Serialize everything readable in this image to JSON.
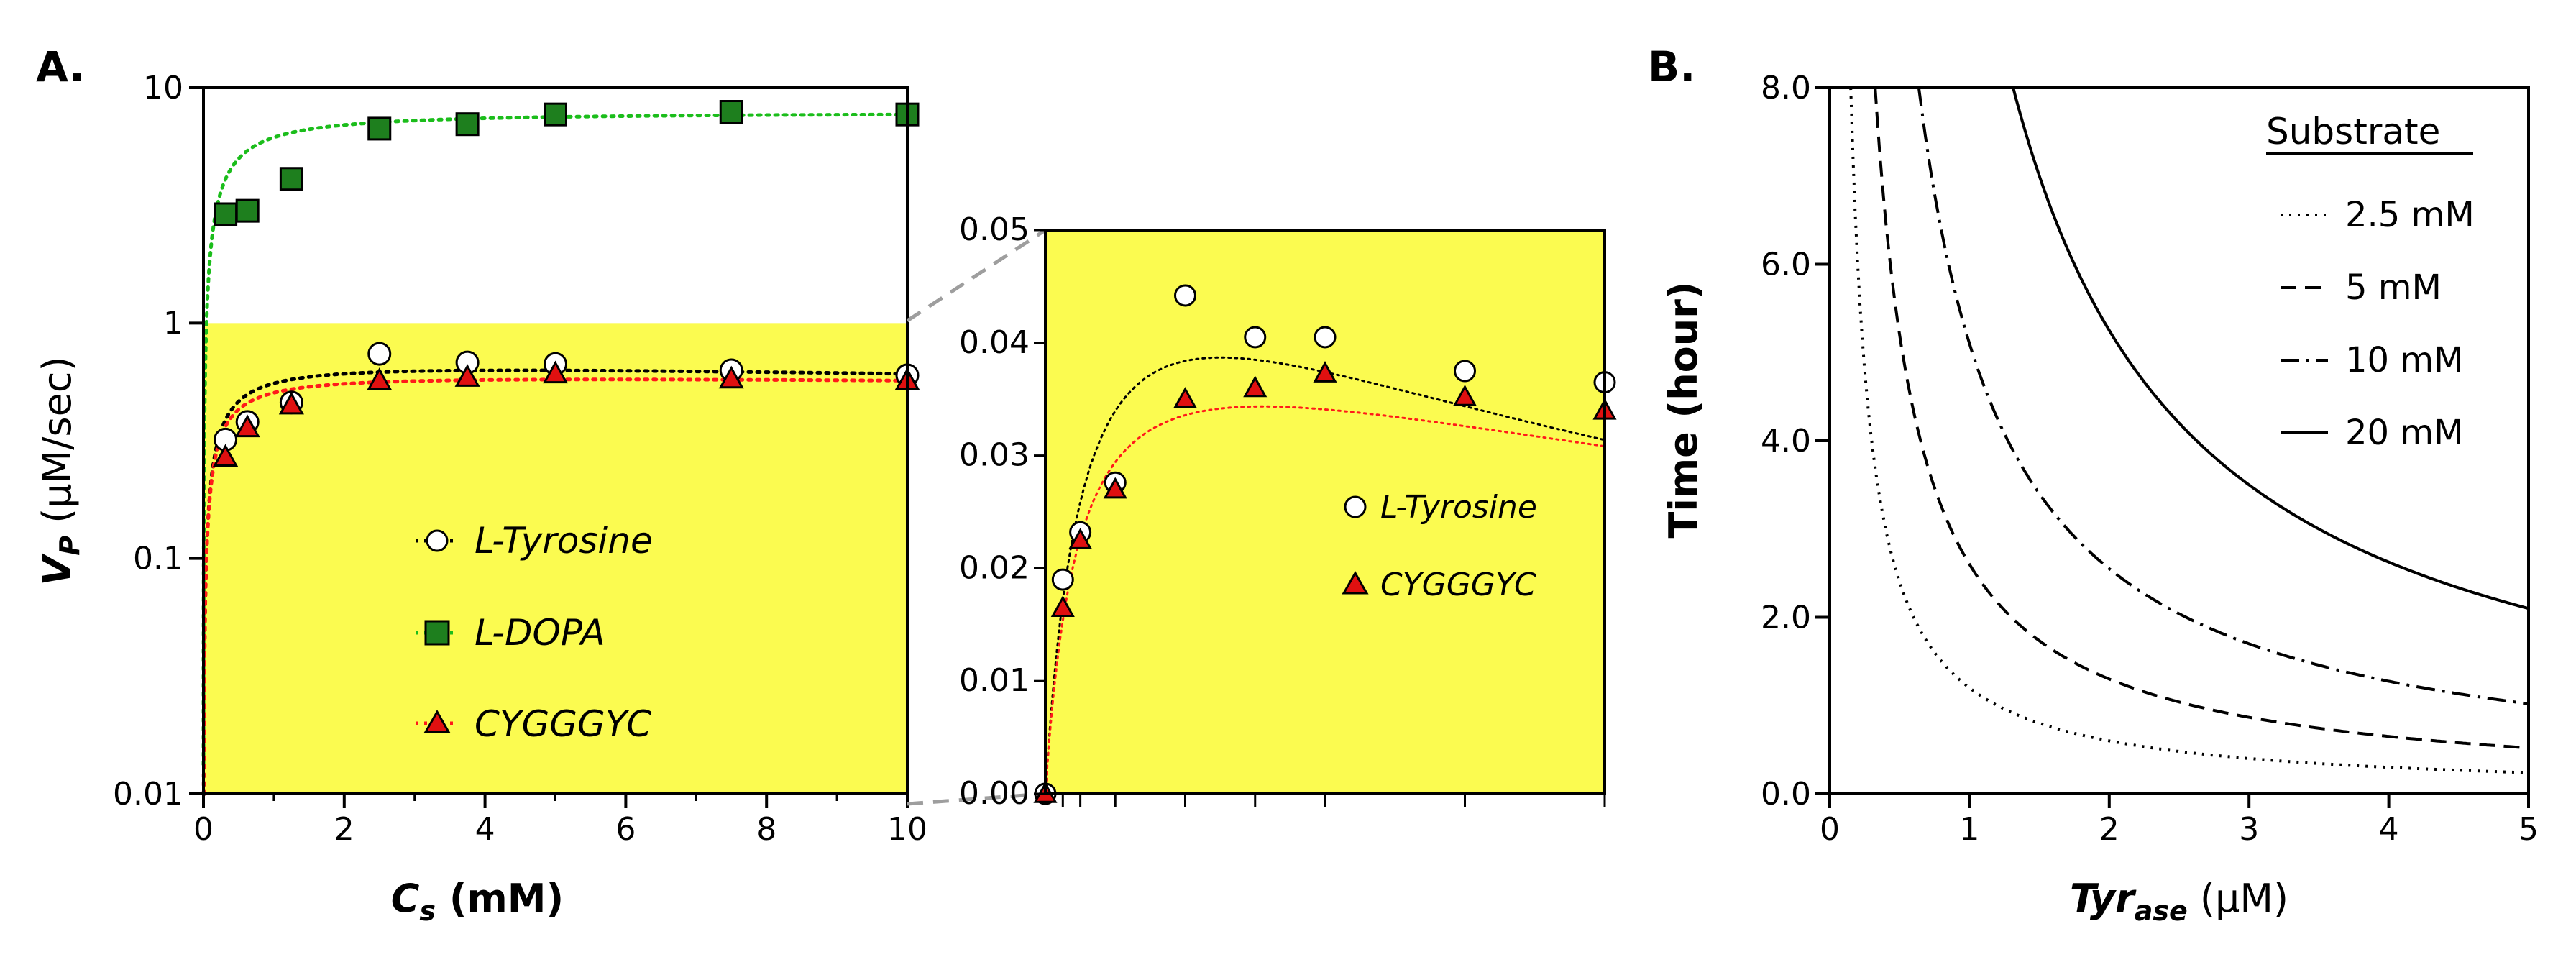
{
  "panel_labels": {
    "a": "A.",
    "b": "B."
  },
  "colors": {
    "highlight": "#fbfb50",
    "dopa_fill": "#1e7f1e",
    "dopa_line": "#1bbd1b",
    "tyr_fill": "#ffffff",
    "cyg_fill": "#e01010",
    "cyg_line": "#ff1a1a",
    "zoom_line": "#9e9e9e"
  },
  "chart_data": [
    {
      "id": "A-main",
      "type": "scatter",
      "scale": "log-y",
      "xlabel_parts": [
        "C",
        "s",
        " (mM)"
      ],
      "ylabel_parts": [
        "V",
        "P",
        " (μM/sec)"
      ],
      "xlim": [
        0,
        10
      ],
      "ylim": [
        0.01,
        10
      ],
      "xticks": [
        0,
        2,
        4,
        6,
        8,
        10
      ],
      "yticks": [
        0.01,
        0.1,
        1,
        10
      ],
      "ytick_labels": [
        "0.01",
        "0.1",
        "1",
        "10"
      ],
      "highlight_region": {
        "x": [
          0,
          10
        ],
        "y": [
          0.01,
          1
        ]
      },
      "legend_location": "center",
      "series": [
        {
          "name": "L-Tyrosine",
          "marker": "circle",
          "x": [
            0.3125,
            0.625,
            1.25,
            2.5,
            3.75,
            5,
            7.5,
            10
          ],
          "y": [
            0.32,
            0.38,
            0.46,
            0.74,
            0.68,
            0.67,
            0.63,
            0.6
          ],
          "fit_vmax": 0.7,
          "fit_km": 0.25,
          "fit_ki": 80
        },
        {
          "name": "L-DOPA",
          "marker": "square",
          "x": [
            0.3125,
            0.625,
            1.25,
            2.5,
            3.75,
            5,
            7.5,
            10
          ],
          "y": [
            2.9,
            3.0,
            4.1,
            6.7,
            7.0,
            7.7,
            7.9,
            7.7
          ],
          "fit_vmax": 8.0,
          "fit_km": 0.3,
          "fit_ki": 1000
        },
        {
          "name": "CYGGGYC",
          "marker": "triangle",
          "x": [
            0.3125,
            0.625,
            1.25,
            2.5,
            3.75,
            5,
            7.5,
            10
          ],
          "y": [
            0.27,
            0.36,
            0.45,
            0.57,
            0.59,
            0.61,
            0.58,
            0.57
          ],
          "fit_vmax": 0.62,
          "fit_km": 0.22,
          "fit_ki": 150
        }
      ]
    },
    {
      "id": "A-inset",
      "type": "scatter",
      "xlim": [
        0,
        10
      ],
      "ylim": [
        0,
        0.05
      ],
      "yticks": [
        0,
        0.01,
        0.02,
        0.03,
        0.04,
        0.05
      ],
      "ytick_labels": [
        "0.00",
        "0.01",
        "0.02",
        "0.03",
        "0.04",
        "0.05"
      ],
      "x_tick_positions": [
        0.3125,
        0.625,
        1.25,
        2.5,
        3.75,
        5,
        7.5,
        10
      ],
      "legend_location": "right",
      "series": [
        {
          "name": "L-Tyrosine",
          "marker": "circle",
          "x": [
            0,
            0.3125,
            0.625,
            1.25,
            2.5,
            3.75,
            5,
            7.5,
            10
          ],
          "y": [
            0,
            0.019,
            0.0232,
            0.0276,
            0.0442,
            0.0405,
            0.0405,
            0.0375,
            0.0365
          ],
          "fit_vmax": 0.056,
          "fit_km": 0.7,
          "fit_ki": 14
        },
        {
          "name": "CYGGGYC",
          "marker": "triangle",
          "x": [
            0,
            0.3125,
            0.625,
            1.25,
            2.5,
            3.75,
            5,
            7.5,
            10
          ],
          "y": [
            0,
            0.0165,
            0.0225,
            0.027,
            0.035,
            0.036,
            0.0373,
            0.0352,
            0.034
          ],
          "fit_vmax": 0.045,
          "fit_km": 0.6,
          "fit_ki": 25
        }
      ]
    },
    {
      "id": "B",
      "type": "line",
      "xlabel_parts": [
        "Tyr",
        "ase",
        " (μM)"
      ],
      "ylabel": "Time (hour)",
      "xlim": [
        0,
        5
      ],
      "ylim": [
        0,
        8
      ],
      "xticks": [
        0,
        1,
        2,
        3,
        4,
        5
      ],
      "yticks": [
        0,
        2,
        4,
        6,
        8
      ],
      "ytick_labels": [
        "0.0",
        "2.0",
        "4.0",
        "6.0",
        "8.0"
      ],
      "legend_title": "Substrate",
      "legend_location": "top-right",
      "series": [
        {
          "name": "2.5 mM",
          "style": "dotted",
          "k": 1.2
        },
        {
          "name": "5 mM",
          "style": "dashed",
          "k": 2.6
        },
        {
          "name": "10 mM",
          "style": "dash-dot",
          "k": 5.1
        },
        {
          "name": "20 mM",
          "style": "solid",
          "k": 10.5
        }
      ],
      "curve_form": "time = k / Tyr_ase (hours)"
    }
  ]
}
